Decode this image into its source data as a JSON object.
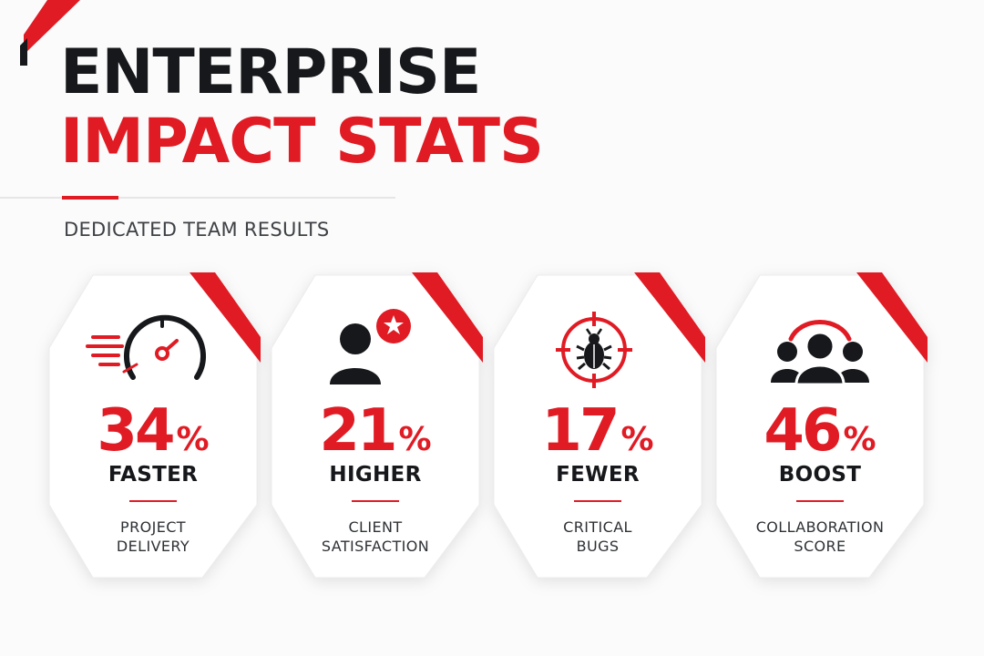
{
  "header": {
    "title_line1": "ENTERPRISE",
    "title_line2": "IMPACT STATS",
    "subtitle": "DEDICATED TEAM RESULTS"
  },
  "colors": {
    "accent": "#e01b24",
    "dark": "#16181b",
    "background": "#fbfbfb"
  },
  "cards": [
    {
      "icon": "speedometer-icon",
      "value": "34",
      "unit": "%",
      "label": "FASTER",
      "desc_line1": "PROJECT",
      "desc_line2": "DELIVERY"
    },
    {
      "icon": "user-star-icon",
      "value": "21",
      "unit": "%",
      "label": "HIGHER",
      "desc_line1": "CLIENT",
      "desc_line2": "SATISFACTION"
    },
    {
      "icon": "bug-target-icon",
      "value": "17",
      "unit": "%",
      "label": "FEWER",
      "desc_line1": "CRITICAL",
      "desc_line2": "BUGS"
    },
    {
      "icon": "team-icon",
      "value": "46",
      "unit": "%",
      "label": "BOOST",
      "desc_line1": "COLLABORATION",
      "desc_line2": "SCORE"
    }
  ]
}
